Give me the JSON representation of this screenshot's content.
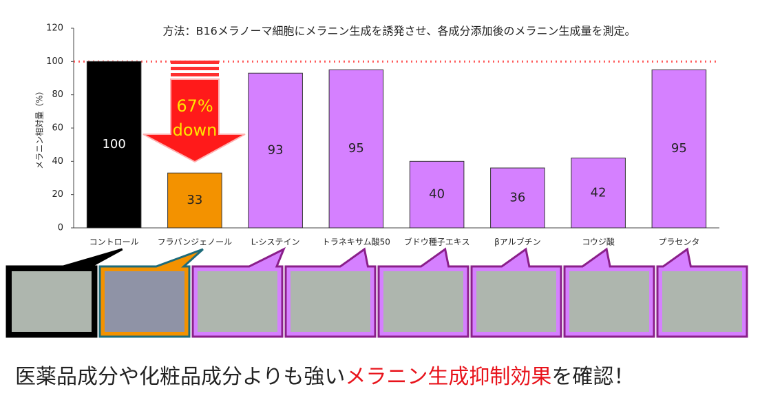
{
  "chart_data": {
    "type": "bar",
    "title": "方法：B16メラノーマ細胞にメラニン生成を誘発させ、各成分添加後のメラニン生成量を測定。",
    "y_label": "メラニン相対量（%）",
    "categories": [
      "コントロール",
      "フラバンジェノール",
      "L-システイン",
      "トラネキサム酸50",
      "ブドウ種子エキス",
      "βアルブチン",
      "コウジ酸",
      "プラセンタ"
    ],
    "values": [
      100,
      33,
      93,
      95,
      40,
      36,
      42,
      95
    ],
    "colors": [
      "#000000",
      "#f39200",
      "#d580ff",
      "#d580ff",
      "#d580ff",
      "#d580ff",
      "#d580ff",
      "#d580ff"
    ],
    "ylim": [
      0,
      120
    ],
    "yticks": [
      0,
      20,
      40,
      60,
      80,
      100,
      120
    ],
    "reference_line": 100,
    "annotations": [
      "67%",
      "down"
    ],
    "caption": [
      "医薬品成分や化粧品成分よりも強い",
      "メラニン生成抑制効果",
      "を確認！"
    ]
  }
}
